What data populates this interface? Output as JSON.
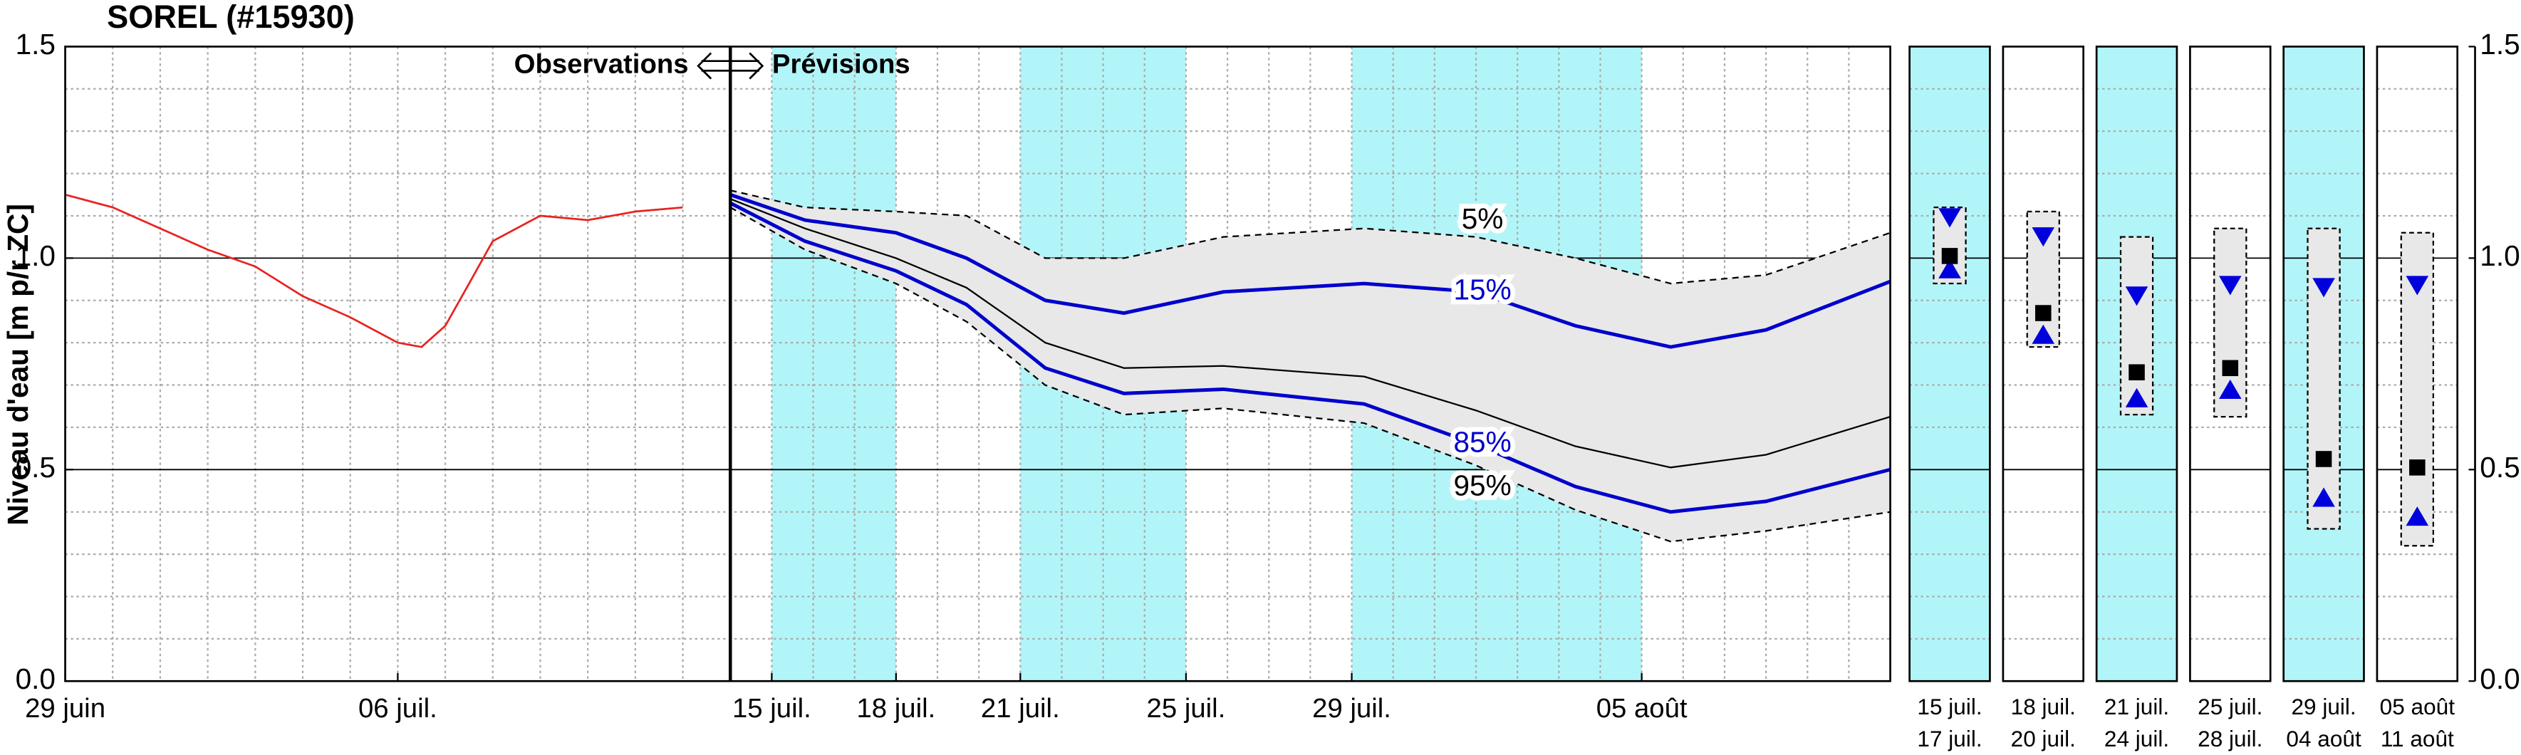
{
  "chart_data": {
    "type": "line",
    "title": "SOREL (#15930)",
    "ylabel": "Niveau d'eau [m p/r ZC]",
    "annotation_left": "Observations",
    "annotation_right": "Prévisions",
    "ylim": [
      0,
      1.5
    ],
    "yticks": [
      {
        "value": 0,
        "label": "0.0"
      },
      0.5,
      {
        "value": 1,
        "label": "1.0"
      },
      1.5
    ],
    "yminorticks": [
      0.1,
      0.2,
      0.3,
      0.4,
      0.6,
      0.7,
      0.8,
      0.9,
      1.1,
      1.2,
      1.3,
      1.4
    ],
    "grid": true,
    "observed": {
      "xlim": [
        0,
        14
      ],
      "xticks": [
        {
          "value": 0,
          "label": "29 juin"
        },
        {
          "value": 7,
          "label": "06 juil."
        }
      ],
      "color": "#e8231f",
      "x": [
        0,
        1,
        2,
        3,
        4,
        5,
        6,
        7,
        7.5,
        8,
        8.5,
        9,
        10,
        11,
        12,
        13
      ],
      "values": [
        1.15,
        1.12,
        1.07,
        1.02,
        0.98,
        0.91,
        0.86,
        0.8,
        0.79,
        0.84,
        0.94,
        1.04,
        1.1,
        1.09,
        1.11,
        1.12
      ]
    },
    "forecast": {
      "xlim": [
        15,
        43
      ],
      "xticks": [
        {
          "value": 16,
          "label": "15 juil."
        },
        {
          "value": 19,
          "label": "18 juil."
        },
        {
          "value": 22,
          "label": "21 juil."
        },
        {
          "value": 26,
          "label": "25 juil."
        },
        {
          "value": 30,
          "label": "29 juil."
        },
        {
          "value": 37,
          "label": "05 août"
        }
      ],
      "shaded": [
        [
          16,
          19
        ],
        [
          22,
          26
        ],
        [
          30,
          37
        ]
      ],
      "shade_color": "#b2f5f8",
      "band_color": "#e8e8e8",
      "x": [
        15,
        16.8,
        19,
        20.7,
        22.6,
        24.5,
        26.9,
        30.3,
        33,
        35.4,
        37.7,
        40,
        43
      ],
      "series": [
        {
          "name": "5%",
          "color": "#000000",
          "dashed": true,
          "values": [
            1.16,
            1.12,
            1.11,
            1.1,
            1.0,
            1.0,
            1.05,
            1.07,
            1.05,
            1.0,
            0.94,
            0.96,
            1.06
          ]
        },
        {
          "name": "15%",
          "color": "#0000cc",
          "values": [
            1.15,
            1.09,
            1.06,
            1.0,
            0.9,
            0.87,
            0.92,
            0.94,
            0.92,
            0.84,
            0.79,
            0.83,
            0.945
          ]
        },
        {
          "color": "#000000",
          "values": [
            1.14,
            1.07,
            1.0,
            0.93,
            0.8,
            0.74,
            0.745,
            0.72,
            0.64,
            0.555,
            0.505,
            0.535,
            0.625
          ]
        },
        {
          "name": "85%",
          "color": "#0000cc",
          "values": [
            1.13,
            1.04,
            0.97,
            0.89,
            0.74,
            0.68,
            0.69,
            0.655,
            0.56,
            0.46,
            0.4,
            0.425,
            0.5
          ]
        },
        {
          "name": "95%",
          "color": "#000000",
          "dashed": true,
          "values": [
            1.12,
            1.02,
            0.94,
            0.85,
            0.7,
            0.63,
            0.645,
            0.61,
            0.51,
            0.405,
            0.33,
            0.355,
            0.4
          ]
        }
      ]
    },
    "periods": [
      {
        "start": "15 juil.",
        "end": "17 juil.",
        "shaded": true,
        "max": 1.12,
        "min": 0.94,
        "p15": 1.095,
        "median": 1.005,
        "p85": 0.975
      },
      {
        "start": "18 juil.",
        "end": "20 juil.",
        "shaded": false,
        "max": 1.11,
        "min": 0.79,
        "p15": 1.05,
        "median": 0.87,
        "p85": 0.82
      },
      {
        "start": "21 juil.",
        "end": "24 juil.",
        "shaded": true,
        "max": 1.05,
        "min": 0.63,
        "p15": 0.91,
        "median": 0.73,
        "p85": 0.67
      },
      {
        "start": "25 juil.",
        "end": "28 juil.",
        "shaded": false,
        "max": 1.07,
        "min": 0.625,
        "p15": 0.935,
        "median": 0.74,
        "p85": 0.69
      },
      {
        "start": "29 juil.",
        "end": "04 août",
        "shaded": true,
        "max": 1.07,
        "min": 0.36,
        "p15": 0.93,
        "median": 0.525,
        "p85": 0.435
      },
      {
        "start": "05 août",
        "end": "11 août",
        "shaded": false,
        "max": 1.06,
        "min": 0.32,
        "p15": 0.935,
        "median": 0.505,
        "p85": 0.39
      }
    ]
  }
}
